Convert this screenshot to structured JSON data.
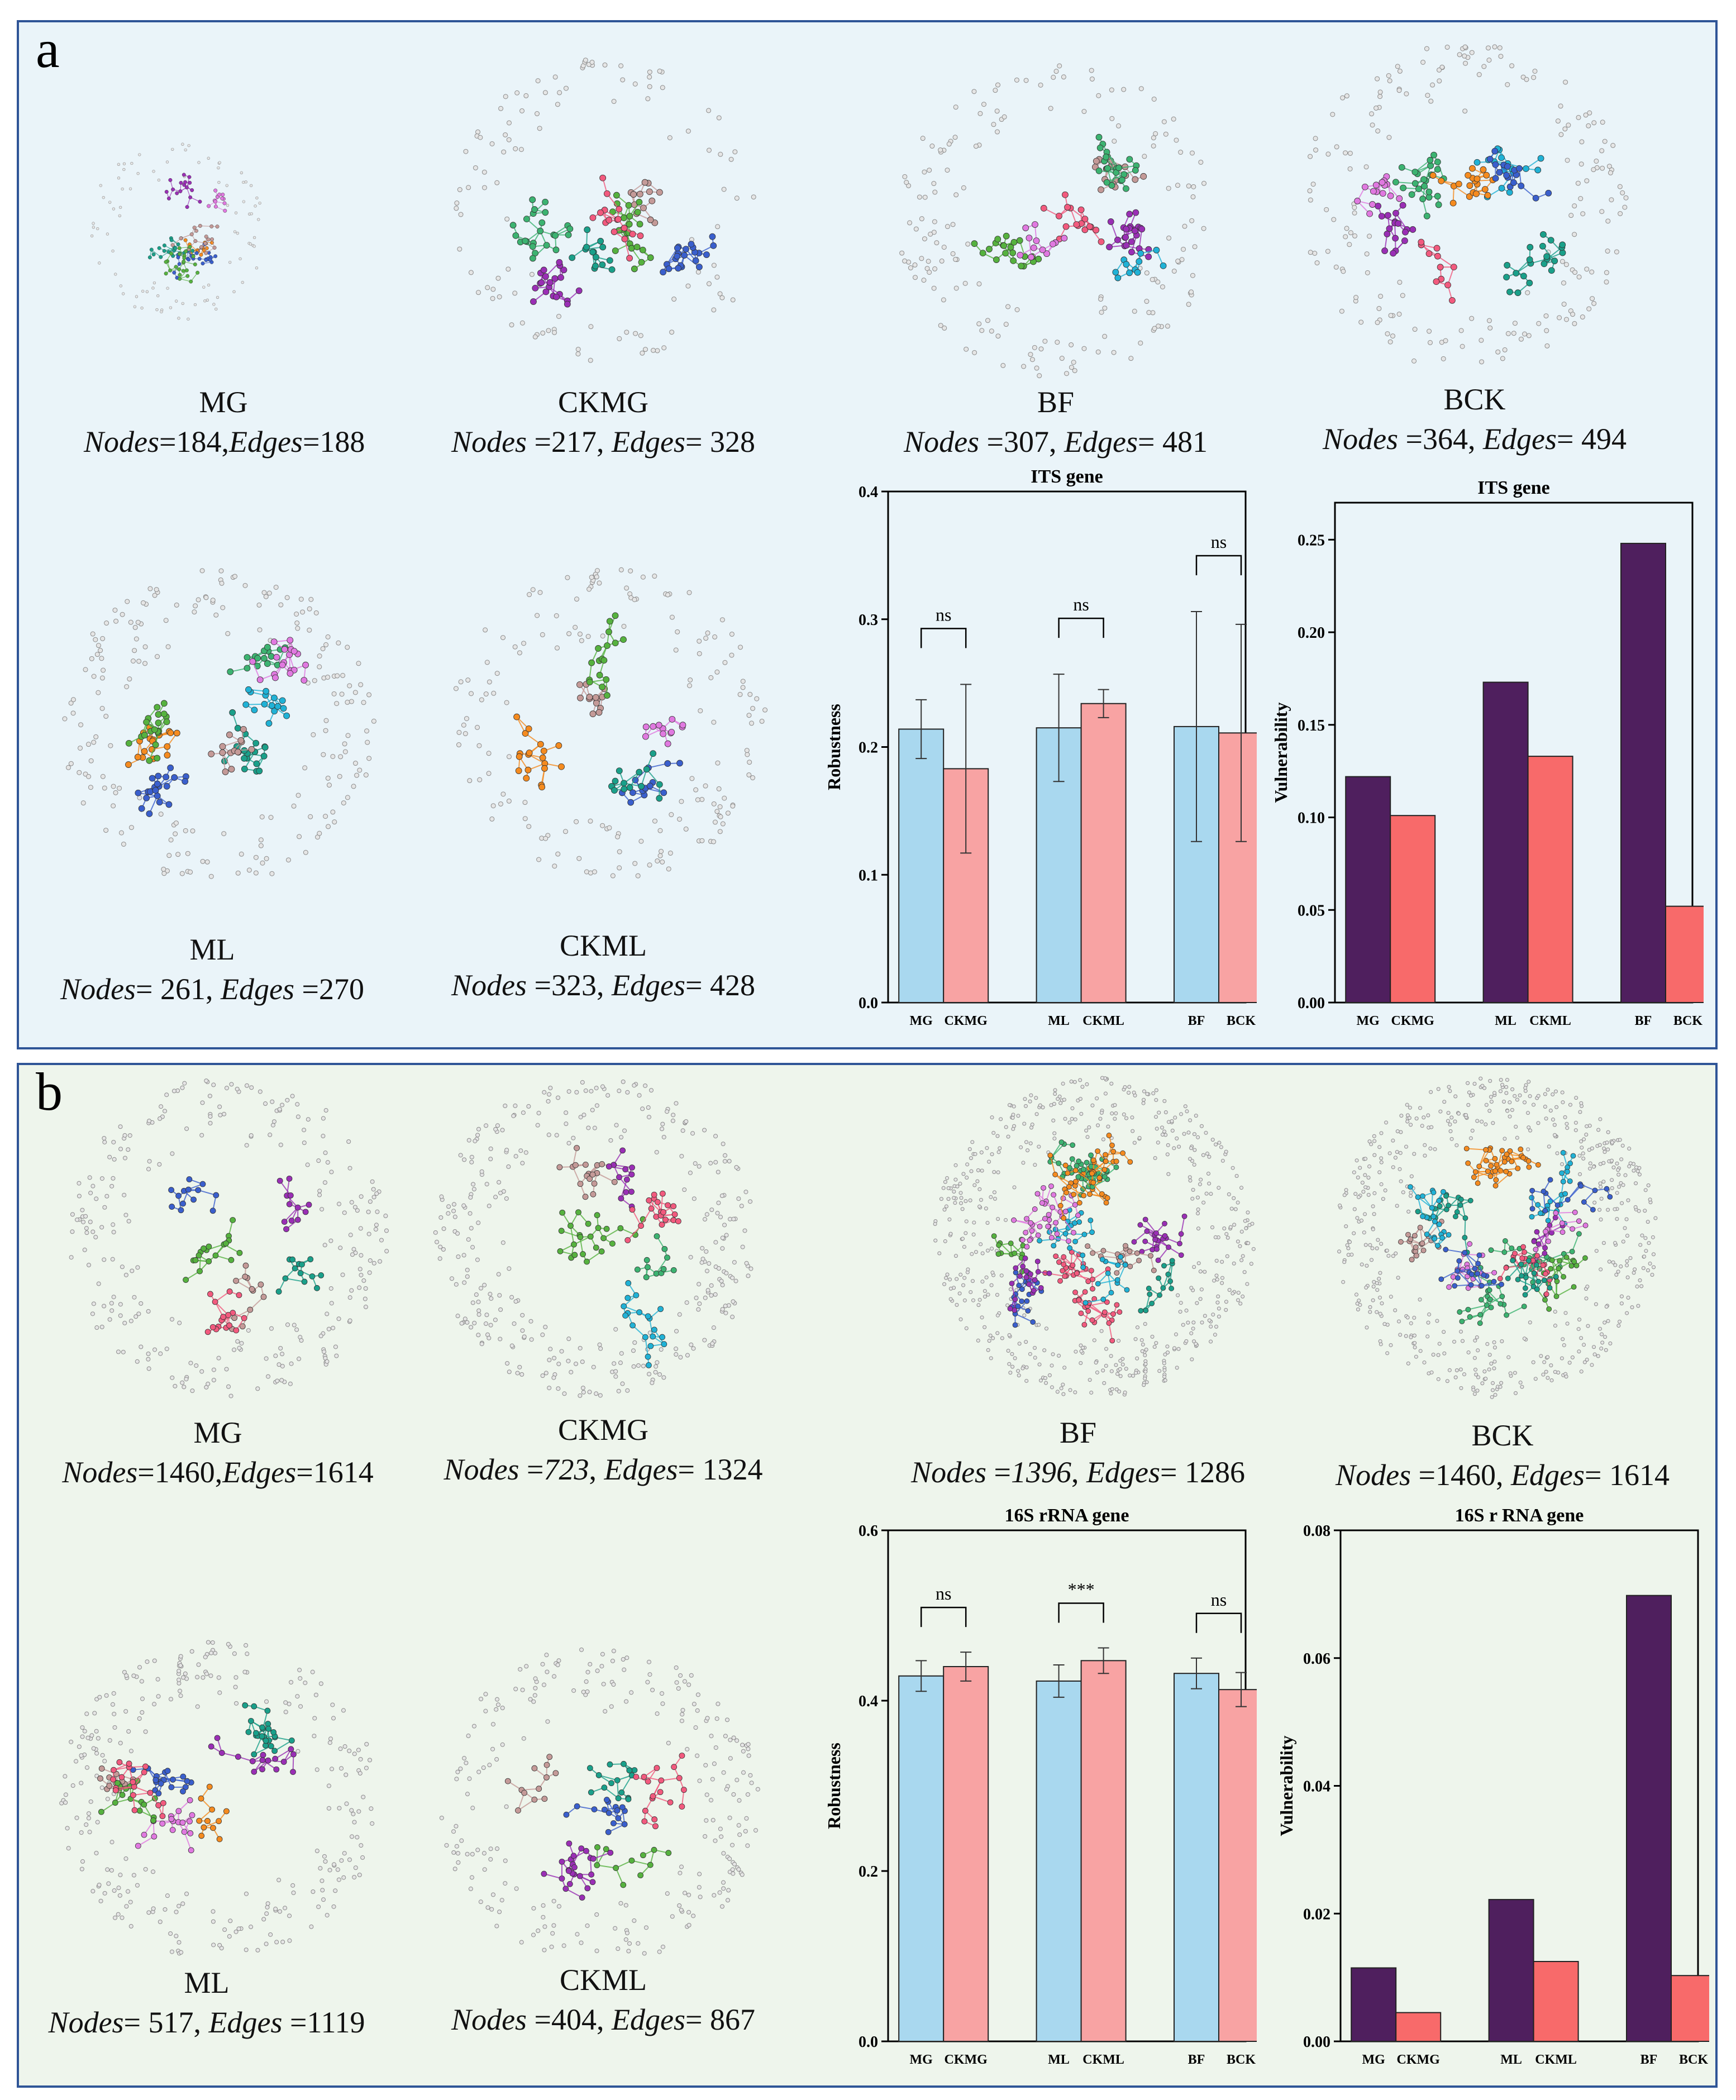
{
  "panels": {
    "a": {
      "letter": "a",
      "networks": [
        {
          "name": "MG",
          "nodes_label": "Nodes",
          "nodes_sep": "=",
          "nodes": "184",
          "edges_sep": ",",
          "edges_label": "Edges",
          "edges_eq": "=",
          "edges": "188"
        },
        {
          "name": "CKMG",
          "nodes_label": "Nodes",
          "nodes_sep": " =",
          "nodes": "217",
          "edges_sep": ", ",
          "edges_label": "Edges",
          "edges_eq": "= ",
          "edges": "328"
        },
        {
          "name": "BF",
          "nodes_label": "Nodes",
          "nodes_sep": " =",
          "nodes": "307",
          "edges_sep": ", ",
          "edges_label": "Edges",
          "edges_eq": "= ",
          "edges": "481"
        },
        {
          "name": "BCK",
          "nodes_label": "Nodes",
          "nodes_sep": " =",
          "nodes": "364",
          "edges_sep": ", ",
          "edges_label": "Edges",
          "edges_eq": "= ",
          "edges": "494"
        },
        {
          "name": "ML",
          "nodes_label": "Nodes",
          "nodes_sep": "= ",
          "nodes": "261",
          "edges_sep": ", ",
          "edges_label": "Edges",
          "edges_eq": " =",
          "edges": "270"
        },
        {
          "name": "CKML",
          "nodes_label": "Nodes",
          "nodes_sep": " =",
          "nodes": "323",
          "edges_sep": ", ",
          "edges_label": "Edges",
          "edges_eq": "= ",
          "edges": "428"
        }
      ]
    },
    "b": {
      "letter": "b",
      "networks": [
        {
          "name": "MG",
          "nodes_label": "Nodes",
          "nodes_sep": "=",
          "nodes": "1460",
          "edges_sep": ",",
          "edges_label": "Edges",
          "edges_eq": "=",
          "edges": "1614"
        },
        {
          "name": "CKMG",
          "nodes_label": "Nodes",
          "nodes_sep": " =",
          "nodes": "723",
          "edges_sep": ", ",
          "edges_label": "Edges",
          "edges_eq": "= ",
          "edges": "1324"
        },
        {
          "name": "BF",
          "nodes_label": "Nodes",
          "nodes_sep": " =",
          "nodes": "1396",
          "edges_sep": ", ",
          "edges_label": "Edges",
          "edges_eq": "= ",
          "edges": "1286"
        },
        {
          "name": "BCK",
          "nodes_label": "Nodes",
          "nodes_sep": " =",
          "nodes": "1460",
          "edges_sep": ", ",
          "edges_label": "Edges",
          "edges_eq": "= ",
          "edges": "1614"
        },
        {
          "name": "ML",
          "nodes_label": "Nodes",
          "nodes_sep": "= ",
          "nodes": "517",
          "edges_sep": ", ",
          "edges_label": "Edges",
          "edges_eq": " =",
          "edges": "1119"
        },
        {
          "name": "CKML",
          "nodes_label": "Nodes",
          "nodes_sep": " =",
          "nodes": "404",
          "edges_sep": ", ",
          "edges_label": "Edges",
          "edges_eq": "= ",
          "edges": "867"
        }
      ]
    }
  },
  "colors": {
    "control_bar": "#a9d8ef",
    "treatment_bar": "#f8a3a3",
    "vuln_dark": "#4f1f5e",
    "vuln_light": "#f86a6a",
    "module_palette": [
      "#f25a7e",
      "#3cb371",
      "#20b2d6",
      "#e079e0",
      "#f58b1f",
      "#3a5fcd",
      "#1aa08a",
      "#c49a98",
      "#56b23f",
      "#9a2fb5"
    ]
  },
  "chart_data": [
    {
      "type": "bar",
      "title": "ITS gene",
      "ylabel": "Robustness",
      "categories": [
        "MG",
        "CKMG",
        "ML",
        "CKML",
        "BF",
        "BCK"
      ],
      "values": [
        0.214,
        0.183,
        0.215,
        0.234,
        0.216,
        0.211
      ],
      "errors": [
        0.023,
        0.066,
        0.042,
        0.011,
        0.09,
        0.085
      ],
      "yticks": [
        "0.0",
        "0.1",
        "0.2",
        "0.3",
        "0.4"
      ],
      "ylim": [
        0,
        0.4
      ],
      "significance": [
        {
          "pair": [
            "MG",
            "CKMG"
          ],
          "label": "ns"
        },
        {
          "pair": [
            "ML",
            "CKML"
          ],
          "label": "ns"
        },
        {
          "pair": [
            "BF",
            "BCK"
          ],
          "label": "ns"
        }
      ]
    },
    {
      "type": "bar",
      "title": "ITS gene",
      "ylabel": "Vulnerability",
      "categories": [
        "MG",
        "CKMG",
        "ML",
        "CKML",
        "BF",
        "BCK"
      ],
      "values": [
        0.122,
        0.101,
        0.173,
        0.133,
        0.248,
        0.052
      ],
      "yticks": [
        "0.00",
        "0.05",
        "0.10",
        "0.15",
        "0.20",
        "0.25"
      ],
      "ylim": [
        0,
        0.27
      ]
    },
    {
      "type": "bar",
      "title": "16S rRNA gene",
      "ylabel": "Robustness",
      "categories": [
        "MG",
        "CKMG",
        "ML",
        "CKML",
        "BF",
        "BCK"
      ],
      "values": [
        0.429,
        0.44,
        0.423,
        0.447,
        0.432,
        0.413
      ],
      "errors": [
        0.018,
        0.017,
        0.019,
        0.015,
        0.018,
        0.02
      ],
      "yticks": [
        "0.0",
        "0.2",
        "0.4",
        "0.6"
      ],
      "ylim": [
        0,
        0.6
      ],
      "significance": [
        {
          "pair": [
            "MG",
            "CKMG"
          ],
          "label": "ns"
        },
        {
          "pair": [
            "ML",
            "CKML"
          ],
          "label": "***"
        },
        {
          "pair": [
            "BF",
            "BCK"
          ],
          "label": "ns"
        }
      ]
    },
    {
      "type": "bar",
      "title": "16S r RNA gene",
      "ylabel": "Vulnerability",
      "categories": [
        "MG",
        "CKMG",
        "ML",
        "CKML",
        "BF",
        "BCK"
      ],
      "values": [
        0.0115,
        0.0045,
        0.0222,
        0.0125,
        0.0698,
        0.0103
      ],
      "yticks": [
        "0.00",
        "0.02",
        "0.04",
        "0.06",
        "0.08"
      ],
      "ylim": [
        0,
        0.08
      ]
    }
  ]
}
